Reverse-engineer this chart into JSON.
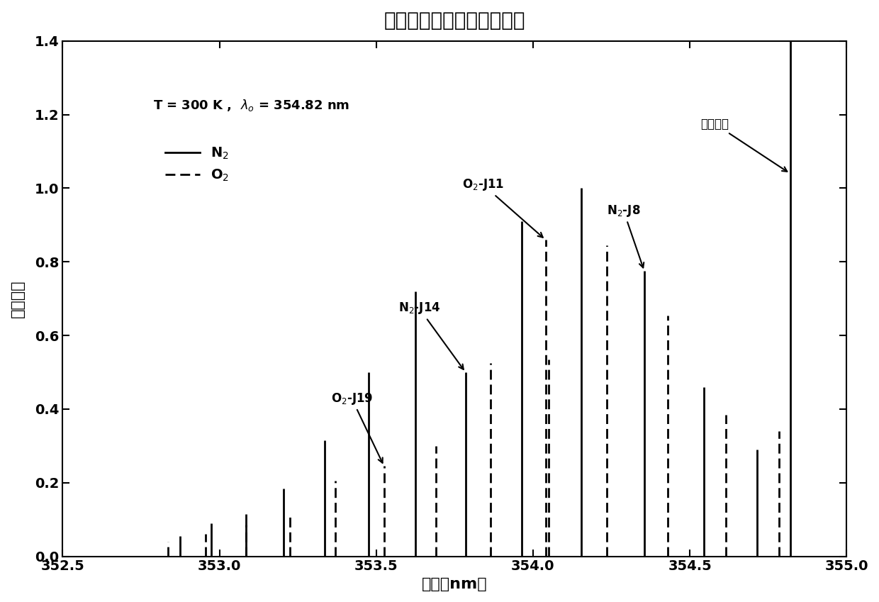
{
  "title": "反斯托克斯纯转动拉曼谱线",
  "xlabel": "波长（nm）",
  "ylabel": "相对强度",
  "xlim": [
    352.5,
    355.0
  ],
  "ylim": [
    0.0,
    1.4
  ],
  "xticks": [
    352.5,
    353.0,
    353.5,
    354.0,
    354.5,
    355.0
  ],
  "yticks": [
    0.0,
    0.2,
    0.4,
    0.6,
    0.8,
    1.0,
    1.2,
    1.4
  ],
  "lambda0": 354.82,
  "N2_lines": [
    {
      "J": 28,
      "wavelength": 352.875,
      "intensity": 0.055
    },
    {
      "J": 26,
      "wavelength": 352.975,
      "intensity": 0.09
    },
    {
      "J": 24,
      "wavelength": 353.085,
      "intensity": 0.115
    },
    {
      "J": 22,
      "wavelength": 353.205,
      "intensity": 0.185
    },
    {
      "J": 20,
      "wavelength": 353.335,
      "intensity": 0.315
    },
    {
      "J": 18,
      "wavelength": 353.475,
      "intensity": 0.5
    },
    {
      "J": 16,
      "wavelength": 353.625,
      "intensity": 0.72
    },
    {
      "J": 14,
      "wavelength": 353.785,
      "intensity": 0.5
    },
    {
      "J": 12,
      "wavelength": 353.965,
      "intensity": 0.91
    },
    {
      "J": 10,
      "wavelength": 354.155,
      "intensity": 1.0
    },
    {
      "J": 8,
      "wavelength": 354.355,
      "intensity": 0.775
    },
    {
      "J": 6,
      "wavelength": 354.545,
      "intensity": 0.46
    },
    {
      "J": 4,
      "wavelength": 354.715,
      "intensity": 0.29
    }
  ],
  "O2_lines": [
    {
      "J": 29,
      "wavelength": 352.835,
      "intensity": 0.04
    },
    {
      "J": 27,
      "wavelength": 352.955,
      "intensity": 0.06
    },
    {
      "J": 25,
      "wavelength": 353.085,
      "intensity": 0.085
    },
    {
      "J": 23,
      "wavelength": 353.225,
      "intensity": 0.115
    },
    {
      "J": 21,
      "wavelength": 353.37,
      "intensity": 0.205
    },
    {
      "J": 19,
      "wavelength": 353.525,
      "intensity": 0.245
    },
    {
      "J": 17,
      "wavelength": 353.69,
      "intensity": 0.3
    },
    {
      "J": 15,
      "wavelength": 353.865,
      "intensity": 0.525
    },
    {
      "J": 13,
      "wavelength": 354.05,
      "intensity": 0.535
    },
    {
      "J": 11,
      "wavelength": 354.04,
      "intensity": 0.86
    },
    {
      "J": 9,
      "wavelength": 354.235,
      "intensity": 0.845
    },
    {
      "J": 7,
      "wavelength": 354.43,
      "intensity": 0.655
    },
    {
      "J": 5,
      "wavelength": 354.615,
      "intensity": 0.385
    },
    {
      "J": 3,
      "wavelength": 354.785,
      "intensity": 0.34
    }
  ],
  "background_color": "#ffffff",
  "title_fontsize": 20,
  "label_fontsize": 16,
  "tick_fontsize": 14,
  "annot_fontsize": 12
}
